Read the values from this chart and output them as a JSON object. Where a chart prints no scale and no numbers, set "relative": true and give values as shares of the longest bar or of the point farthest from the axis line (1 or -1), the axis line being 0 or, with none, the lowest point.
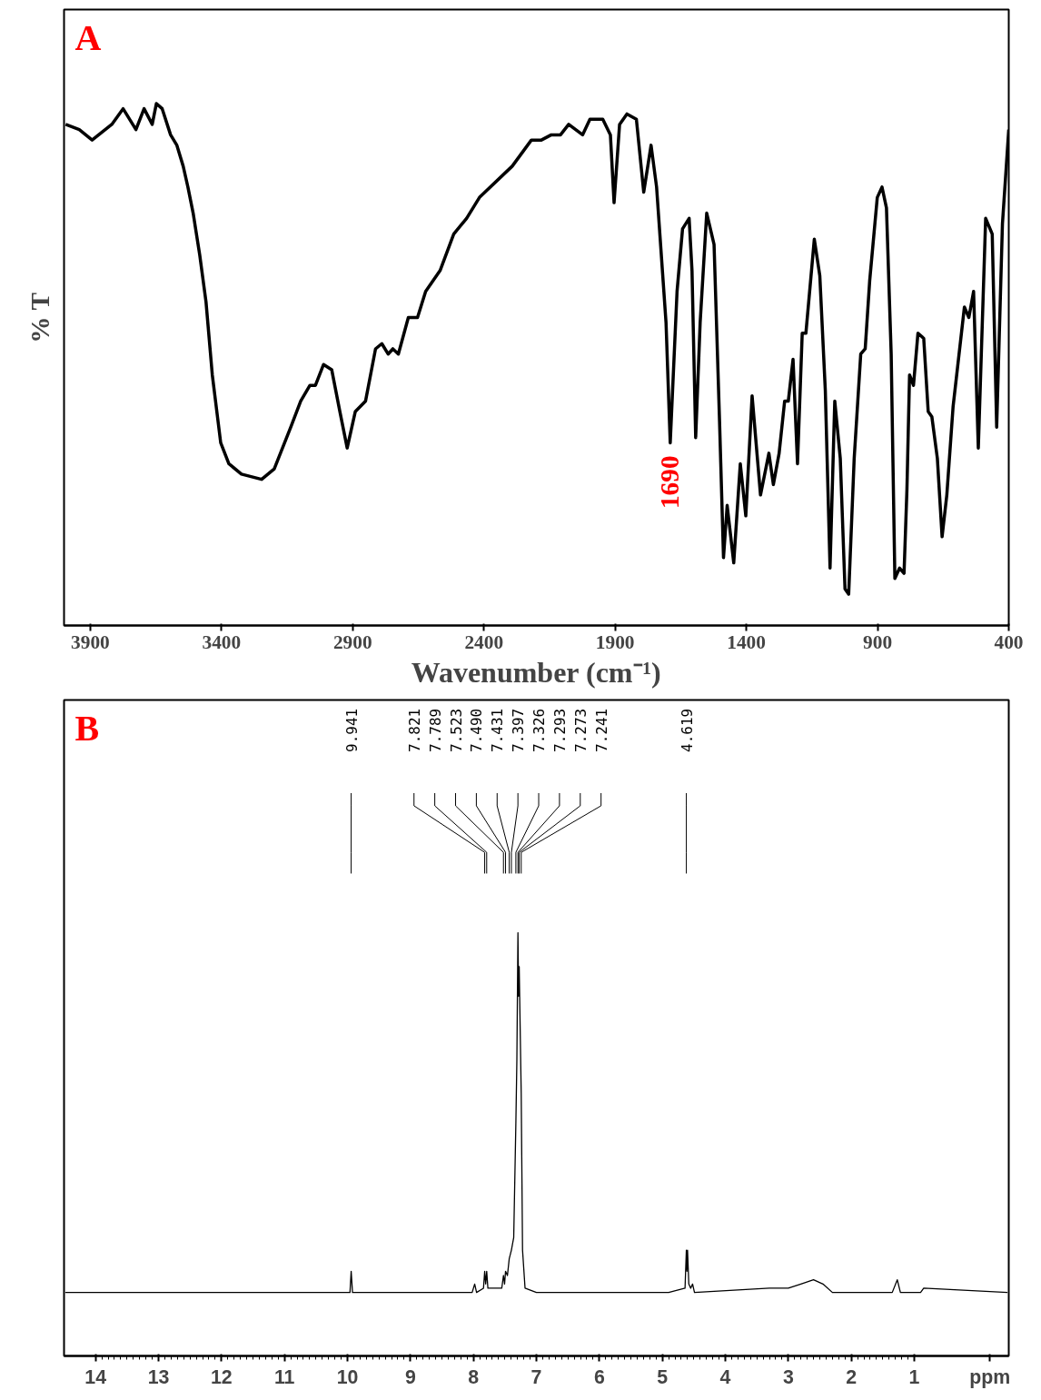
{
  "chart_data": [
    {
      "type": "line",
      "title": "A",
      "xlabel": "Wavenumber (cm⁻¹)",
      "ylabel": "% T",
      "color": "#000000",
      "relative": true,
      "tick_labels": "x",
      "xlim": [
        4000,
        400
      ],
      "xticks": [
        3900,
        3400,
        2900,
        2400,
        1900,
        1400,
        900,
        400
      ],
      "x": [
        3994,
        3942,
        3893,
        3818,
        3775,
        3726,
        3695,
        3664,
        3648,
        3626,
        3594,
        3570,
        3546,
        3528,
        3508,
        3483,
        3459,
        3435,
        3403,
        3372,
        3324,
        3247,
        3199,
        3136,
        3098,
        3063,
        3042,
        3011,
        2980,
        2949,
        2921,
        2890,
        2851,
        2813,
        2789,
        2765,
        2747,
        2726,
        2688,
        2653,
        2622,
        2567,
        2515,
        2466,
        2417,
        2292,
        2219,
        2181,
        2143,
        2108,
        2077,
        2024,
        1996,
        1947,
        1918,
        1904,
        1883,
        1855,
        1819,
        1801,
        1791,
        1763,
        1742,
        1706,
        1690,
        1664,
        1643,
        1618,
        1607,
        1593,
        1576,
        1551,
        1523,
        1502,
        1487,
        1473,
        1448,
        1423,
        1402,
        1378,
        1346,
        1314,
        1297,
        1275,
        1254,
        1240,
        1222,
        1205,
        1187,
        1173,
        1141,
        1120,
        1099,
        1081,
        1063,
        1042,
        1024,
        1010,
        989,
        964,
        947,
        930,
        901,
        883,
        866,
        848,
        834,
        816,
        799,
        788,
        778,
        763,
        746,
        724,
        707,
        693,
        672,
        654,
        636,
        612,
        569,
        552,
        534,
        516,
        488,
        463,
        446,
        424,
        400
      ],
      "values": [
        0.96,
        0.95,
        0.93,
        0.96,
        0.99,
        0.95,
        0.99,
        0.96,
        1.0,
        0.99,
        0.94,
        0.92,
        0.88,
        0.84,
        0.79,
        0.71,
        0.62,
        0.48,
        0.35,
        0.31,
        0.29,
        0.28,
        0.3,
        0.38,
        0.43,
        0.46,
        0.46,
        0.5,
        0.49,
        0.41,
        0.34,
        0.41,
        0.43,
        0.53,
        0.54,
        0.52,
        0.53,
        0.52,
        0.59,
        0.59,
        0.64,
        0.68,
        0.75,
        0.78,
        0.82,
        0.88,
        0.93,
        0.93,
        0.94,
        0.94,
        0.96,
        0.94,
        0.97,
        0.97,
        0.94,
        0.81,
        0.96,
        0.98,
        0.97,
        0.88,
        0.83,
        0.92,
        0.84,
        0.58,
        0.35,
        0.64,
        0.76,
        0.78,
        0.68,
        0.36,
        0.58,
        0.79,
        0.73,
        0.39,
        0.13,
        0.23,
        0.12,
        0.31,
        0.21,
        0.44,
        0.25,
        0.33,
        0.27,
        0.33,
        0.43,
        0.43,
        0.51,
        0.31,
        0.56,
        0.56,
        0.74,
        0.67,
        0.45,
        0.11,
        0.43,
        0.32,
        0.07,
        0.06,
        0.32,
        0.52,
        0.53,
        0.66,
        0.82,
        0.84,
        0.8,
        0.52,
        0.09,
        0.11,
        0.1,
        0.26,
        0.48,
        0.46,
        0.56,
        0.55,
        0.41,
        0.4,
        0.32,
        0.17,
        0.25,
        0.42,
        0.61,
        0.59,
        0.64,
        0.34,
        0.78,
        0.75,
        0.38,
        0.77,
        0.95
      ],
      "annotations": [
        "1690"
      ]
    },
    {
      "type": "line",
      "title": "B",
      "xlabel": "ppm",
      "color": "#000000",
      "relative": true,
      "tick_labels": "x",
      "xlim": [
        14.5,
        -0.5
      ],
      "xticks": [
        14,
        13,
        12,
        11,
        10,
        9,
        8,
        7,
        6,
        5,
        4,
        3,
        2,
        1
      ],
      "x": [
        14.48,
        10.0,
        9.96,
        9.941,
        9.92,
        8.02,
        7.98,
        7.95,
        7.84,
        7.821,
        7.805,
        7.789,
        7.77,
        7.55,
        7.523,
        7.505,
        7.49,
        7.46,
        7.431,
        7.397,
        7.36,
        7.326,
        7.31,
        7.293,
        7.283,
        7.273,
        7.255,
        7.241,
        7.22,
        7.18,
        7.0,
        4.9,
        4.64,
        4.619,
        4.61,
        4.6,
        4.58,
        4.55,
        4.52,
        4.49,
        3.3,
        3.0,
        2.8,
        2.6,
        2.45,
        2.3,
        1.35,
        1.27,
        1.22,
        0.9,
        0.85,
        -0.48
      ],
      "values": [
        0.15,
        0.15,
        0.15,
        0.2,
        0.15,
        0.15,
        0.17,
        0.15,
        0.16,
        0.2,
        0.17,
        0.2,
        0.16,
        0.16,
        0.19,
        0.17,
        0.2,
        0.19,
        0.23,
        0.25,
        0.28,
        0.55,
        0.7,
        1.0,
        0.85,
        0.92,
        0.75,
        0.62,
        0.25,
        0.16,
        0.15,
        0.15,
        0.16,
        0.25,
        0.2,
        0.25,
        0.17,
        0.16,
        0.17,
        0.15,
        0.16,
        0.16,
        0.17,
        0.18,
        0.17,
        0.15,
        0.15,
        0.18,
        0.15,
        0.15,
        0.16,
        0.15
      ],
      "annotations": [
        "9.941",
        "7.821",
        "7.789",
        "7.523",
        "7.490",
        "7.431",
        "7.397",
        "7.326",
        "7.293",
        "7.273",
        "7.241",
        "4.619"
      ]
    }
  ]
}
